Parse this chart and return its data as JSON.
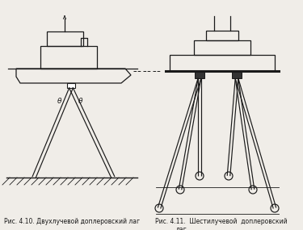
{
  "bg_color": "#f0ede8",
  "line_color": "#1a1a1a",
  "caption1": "Рис. 4.10. Двухлучевой доплеровский лаг",
  "caption2_line1": "Рис. 4.11.  Шестилучевой  доплеровский",
  "caption2_line2": "лаг",
  "fig_width": 3.75,
  "fig_height": 2.85,
  "dpi": 100
}
